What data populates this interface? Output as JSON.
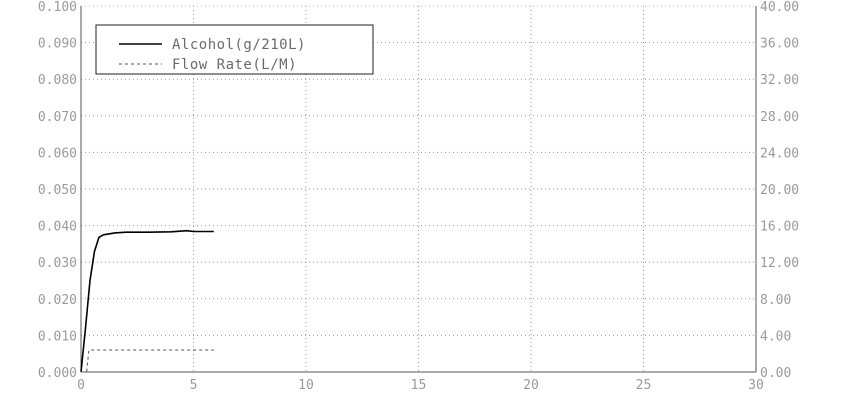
{
  "chart_data": {
    "type": "line",
    "title": "",
    "xlabel": "",
    "ylabel": "",
    "y2label": "",
    "xlim": [
      0,
      30
    ],
    "ylim": [
      0,
      0.1
    ],
    "y2lim": [
      0,
      40
    ],
    "grid": true,
    "legend_position": "top-left",
    "x_ticks": [
      "0",
      "5",
      "10",
      "15",
      "20",
      "25",
      "30"
    ],
    "y_ticks": [
      "0.000",
      "0.010",
      "0.020",
      "0.030",
      "0.040",
      "0.050",
      "0.060",
      "0.070",
      "0.080",
      "0.090",
      "0.100"
    ],
    "y2_ticks": [
      "0.00",
      "4.00",
      "8.00",
      "12.00",
      "16.00",
      "20.00",
      "24.00",
      "28.00",
      "32.00",
      "36.00",
      "40.00"
    ],
    "series": [
      {
        "name": "Alcohol(g/210L)",
        "axis": "left",
        "style": "solid",
        "color": "#000000",
        "x": [
          0,
          0.2,
          0.4,
          0.6,
          0.8,
          1.0,
          1.5,
          2.0,
          3.0,
          4.0,
          4.7,
          5.0,
          5.5,
          5.9
        ],
        "y": [
          0,
          0.012,
          0.025,
          0.033,
          0.0368,
          0.0375,
          0.038,
          0.0382,
          0.0382,
          0.0383,
          0.0386,
          0.0384,
          0.0384,
          0.0384
        ]
      },
      {
        "name": "Flow Rate(L/M)",
        "axis": "right",
        "style": "dashed",
        "color": "#555555",
        "x": [
          0,
          0.25,
          0.35,
          5.9
        ],
        "y": [
          0,
          0,
          2.4,
          2.4
        ]
      }
    ]
  }
}
